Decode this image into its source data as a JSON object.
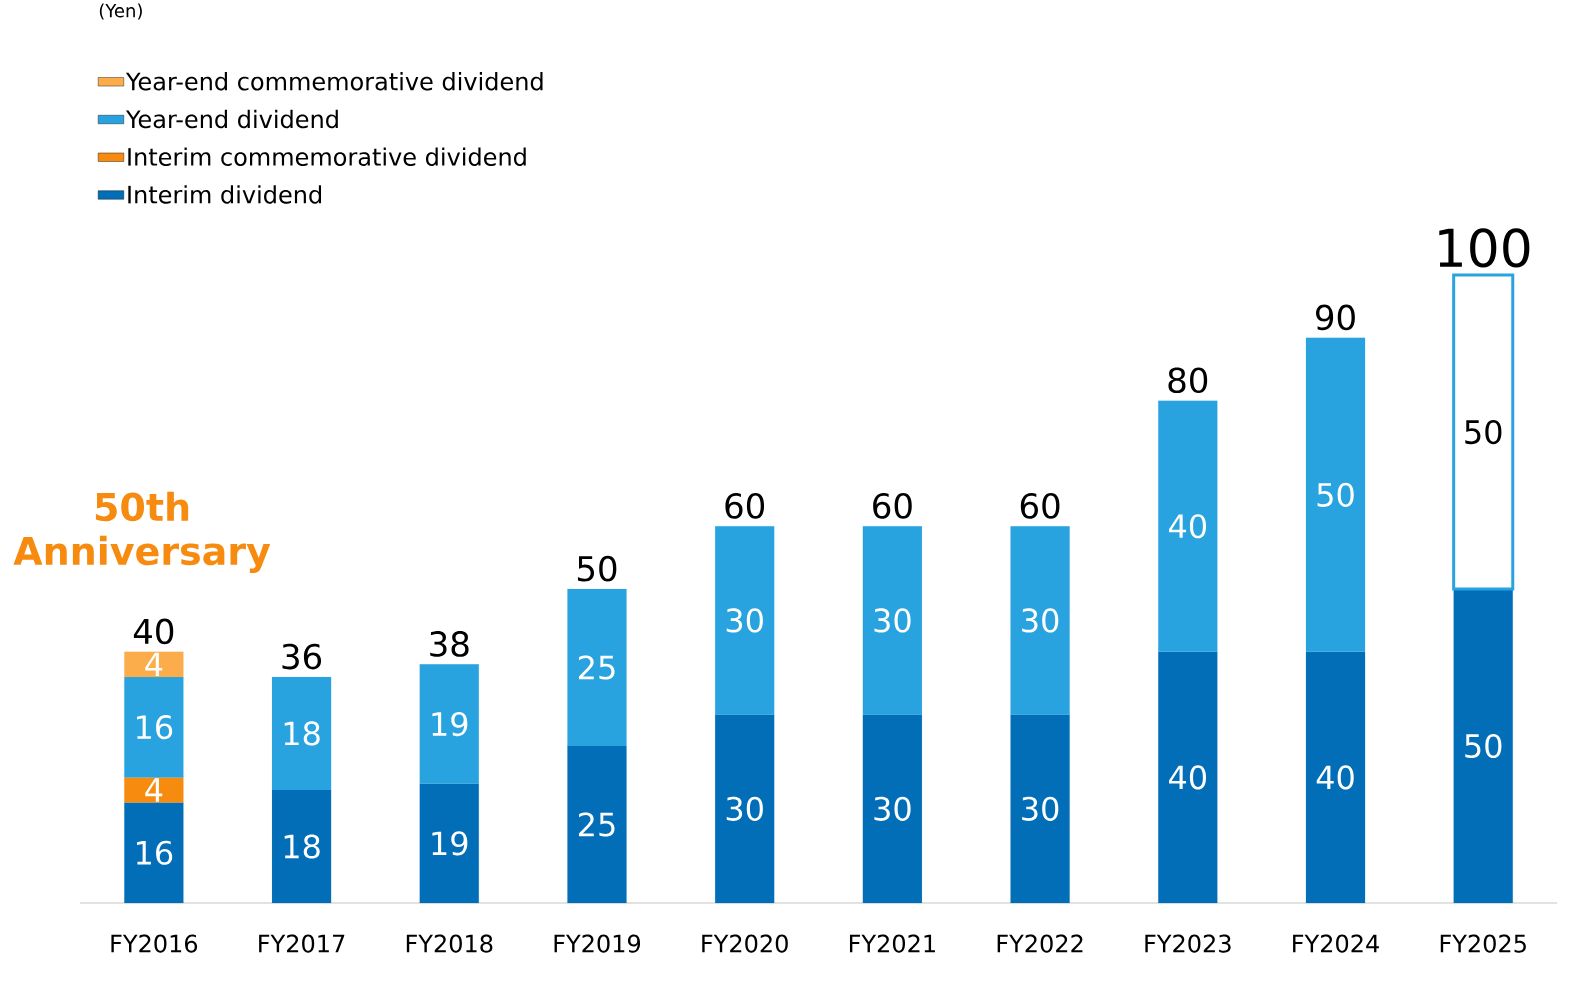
{
  "chart_data": {
    "type": "bar",
    "stacked": true,
    "data_labels": true,
    "legend": "top left",
    "categories": [
      "FY2016",
      "FY2017",
      "FY2018",
      "FY2019",
      "FY2020",
      "FY2021",
      "FY2022",
      "FY2023",
      "FY2024",
      "FY2025"
    ],
    "series": [
      {
        "name": "Interim dividend",
        "color": "#036eb8",
        "values": [
          16,
          18,
          19,
          25,
          30,
          30,
          30,
          40,
          40,
          50
        ]
      },
      {
        "name": "Interim commemorative dividend",
        "color": "#f68b0f",
        "values": [
          4,
          null,
          null,
          null,
          null,
          null,
          null,
          null,
          null,
          null
        ]
      },
      {
        "name": "Year-end dividend",
        "color": "#29a3df",
        "values": [
          16,
          18,
          19,
          25,
          30,
          30,
          30,
          40,
          50,
          50
        ],
        "colors": [
          "#29a3df",
          "#29a3df",
          "#29a3df",
          "#29a3df",
          "#29a3df",
          "#29a3df",
          "#29a3df",
          "#29a3df",
          "#29a3df",
          "#ffffff"
        ]
      },
      {
        "name": "Year-end commemorative dividend",
        "color": "#fbad4c",
        "values": [
          4,
          null,
          null,
          null,
          null,
          null,
          null,
          null,
          null,
          null
        ]
      }
    ],
    "totals": [
      "40",
      "36",
      "38",
      "50",
      "60",
      "60",
      "60",
      "80",
      "90",
      "100"
    ],
    "annotations": [
      "(Yen)",
      "50th Anniversary"
    ]
  }
}
